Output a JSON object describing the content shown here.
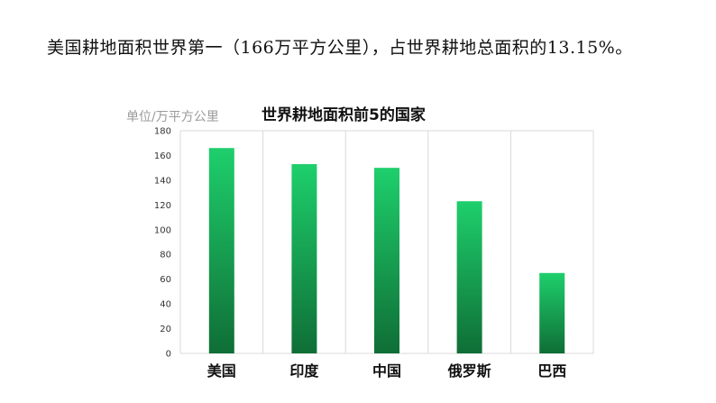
{
  "headline": {
    "text": "美国耕地面积世界第一（166万平方公里），占世界耕地总面积的13.15%。"
  },
  "chart_data": {
    "type": "bar",
    "title": "世界耕地面积前5的国家",
    "ylabel": "单位/万平方公里",
    "xlabel": "",
    "categories": [
      "美国",
      "印度",
      "中国",
      "俄罗斯",
      "巴西"
    ],
    "values": [
      166,
      153,
      150,
      123,
      65
    ],
    "ylim": [
      0,
      180
    ],
    "yticks": [
      0,
      20,
      40,
      60,
      80,
      100,
      120,
      140,
      160,
      180
    ],
    "grid": "vertical",
    "legend": "none",
    "colors": {
      "bar_top": "#1ecf6c",
      "bar_bottom": "#0f6e36",
      "grid": "#d9d9d9"
    }
  }
}
